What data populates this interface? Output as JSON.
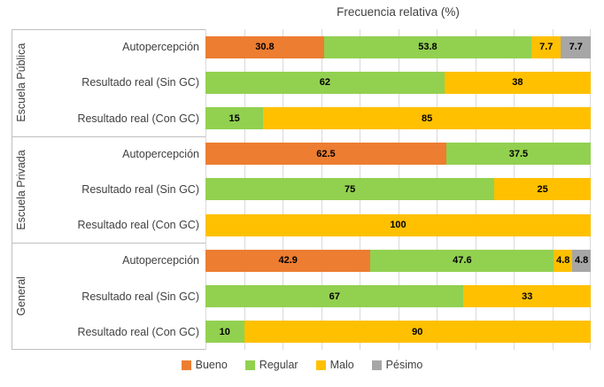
{
  "title": "Frecuencia relativa (%)",
  "legend": [
    {
      "label": "Bueno",
      "color": "#ED7D31"
    },
    {
      "label": "Regular",
      "color": "#92D050"
    },
    {
      "label": "Malo",
      "color": "#FFC000"
    },
    {
      "label": "Pésimo",
      "color": "#A6A6A6"
    }
  ],
  "chart_data": {
    "type": "bar",
    "orientation": "horizontal",
    "stacked": true,
    "title": "Frecuencia relativa (%)",
    "xlabel": "",
    "ylabel": "",
    "xlim": [
      0,
      100
    ],
    "gridline_step": 10,
    "grid": true,
    "legend_position": "bottom",
    "series_names": [
      "Bueno",
      "Regular",
      "Malo",
      "Pésimo"
    ],
    "groups": [
      {
        "label": "Escuela Pública",
        "rows": [
          {
            "label": "Autopercepción",
            "values": [
              30.8,
              53.8,
              7.7,
              7.7
            ]
          },
          {
            "label": "Resultado real (Sin GC)",
            "values": [
              0,
              62,
              38,
              0
            ]
          },
          {
            "label": "Resultado real (Con GC)",
            "values": [
              0,
              15,
              85,
              0
            ]
          }
        ]
      },
      {
        "label": "Escuela Privada",
        "rows": [
          {
            "label": "Autopercepción",
            "values": [
              62.5,
              37.5,
              0,
              0
            ]
          },
          {
            "label": "Resultado real (Sin GC)",
            "values": [
              0,
              75,
              25,
              0
            ]
          },
          {
            "label": "Resultado real (Con GC)",
            "values": [
              0,
              0,
              100,
              0
            ]
          }
        ]
      },
      {
        "label": "General",
        "rows": [
          {
            "label": "Autopercepción",
            "values": [
              42.9,
              47.6,
              4.8,
              4.8
            ]
          },
          {
            "label": "Resultado real (Sin GC)",
            "values": [
              0,
              67,
              33,
              0
            ]
          },
          {
            "label": "Resultado real (Con GC)",
            "values": [
              0,
              10,
              90,
              0
            ]
          }
        ]
      }
    ]
  }
}
